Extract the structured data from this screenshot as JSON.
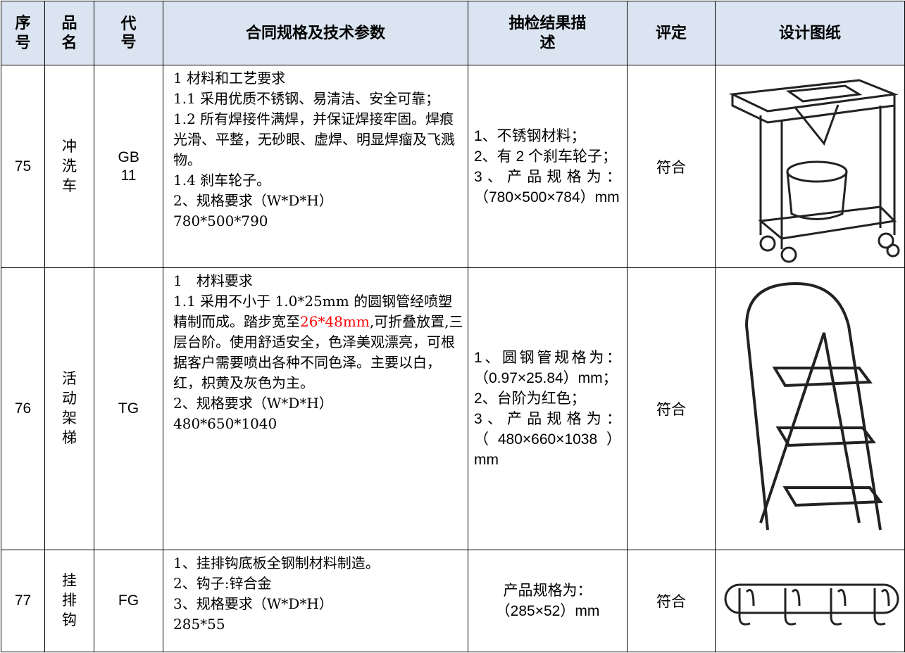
{
  "table": {
    "header": [
      "序号",
      "品名",
      "代号",
      "合同规格及技术参数",
      "抽检结果描述",
      "评定",
      "设计图纸"
    ],
    "rows": [
      {
        "no": "75",
        "name": "冲洗车",
        "code": "GB 11",
        "spec": [
          [
            "1 材料和工艺要求"
          ],
          [
            "1.1 采用优质不锈钢、易清洁、安全可靠；"
          ],
          [
            "1.2 所有焊接件满焊，并保证焊接牢固。焊痕光滑、平整，无砂眼、虚焊、明显焊瘤及飞溅物。"
          ],
          [
            "1.4 刹车轮子。"
          ],
          [
            "2、规格要求（W*D*H）"
          ],
          [
            "780*500*790"
          ]
        ],
        "result": [
          "1、不锈钢材料；",
          "2、有 2 个刹车轮子；",
          "3、产品规格为：（780×500×784）mm"
        ],
        "verdict": "符合"
      },
      {
        "no": "76",
        "name": "活动架梯",
        "code": "TG",
        "spec": [
          [
            "1　材料要求"
          ],
          [
            "1.1 采用不小于 1.0*25mm 的圆钢管经喷塑精制而成。踏步宽至",
            "26*48mm",
            ",可折叠放置,三层台阶。使用舒适安全，色泽美观漂亮，可根据客户需要喷出各种不同色泽。主要以白，红，枳黄及灰色为主。"
          ],
          [
            "2、规格要求（W*D*H）"
          ],
          [
            "480*650*1040"
          ]
        ],
        "result": [
          "1、圆钢管规格为：（0.97×25.84）mm；",
          "2、台阶为红色；",
          "3、产品规格为：（480×660×1038）mm"
        ],
        "verdict": "符合"
      },
      {
        "no": "77",
        "name": "挂排钩",
        "code": "FG",
        "spec": [
          [
            "1、挂排钩底板全钢制材料制造。"
          ],
          [
            "2、钩子:锌合金"
          ],
          [
            "3、规格要求（W*D*H）"
          ],
          [
            "285*55"
          ]
        ],
        "result": [
          "产品规格为：",
          "（285×52）mm"
        ],
        "verdict": "符合"
      }
    ],
    "highlight_color": "#ff0000"
  }
}
